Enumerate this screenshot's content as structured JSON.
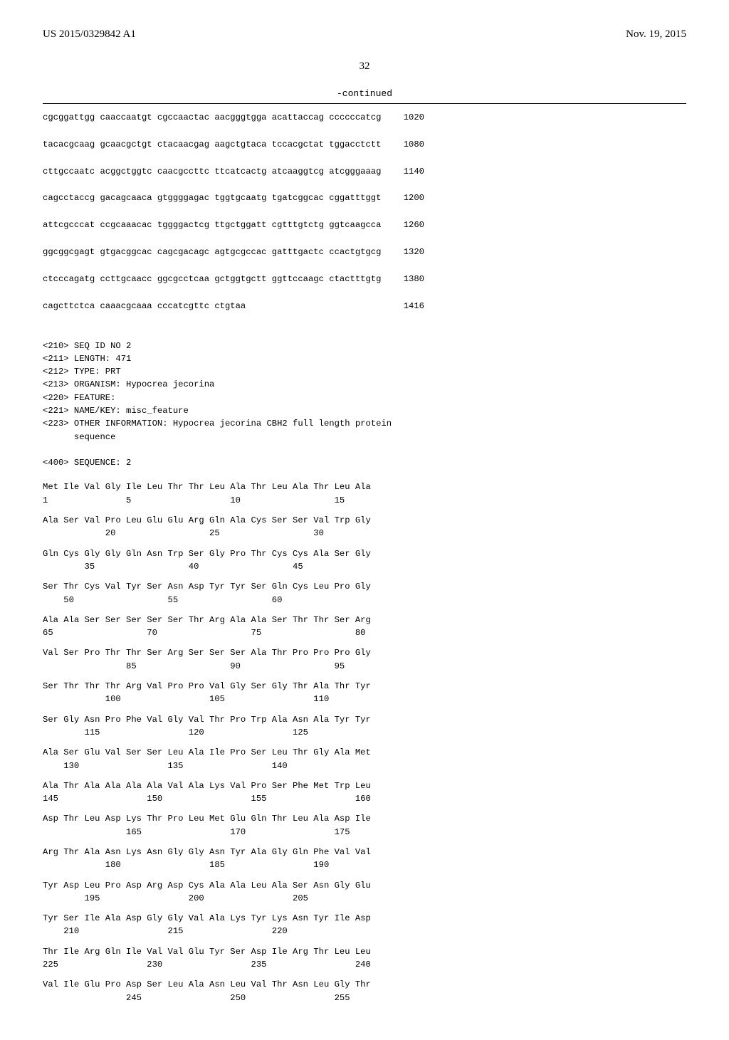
{
  "header": {
    "left": "US 2015/0329842 A1",
    "right": "Nov. 19, 2015"
  },
  "page_number": "32",
  "continued_label": "-continued",
  "nucleotide": {
    "lines": [
      {
        "seq": "cgcggattgg caaccaatgt cgccaactac aacgggtgga acattaccag ccccccatcg",
        "num": "1020"
      },
      {
        "seq": "tacacgcaag gcaacgctgt ctacaacgag aagctgtaca tccacgctat tggacctctt",
        "num": "1080"
      },
      {
        "seq": "cttgccaatc acggctggtc caacgccttc ttcatcactg atcaaggtcg atcgggaaag",
        "num": "1140"
      },
      {
        "seq": "cagcctaccg gacagcaaca gtggggagac tggtgcaatg tgatcggcac cggatttggt",
        "num": "1200"
      },
      {
        "seq": "attcgcccat ccgcaaacac tggggactcg ttgctggatt cgtttgtctg ggtcaagcca",
        "num": "1260"
      },
      {
        "seq": "ggcggcgagt gtgacggcac cagcgacagc agtgcgccac gatttgactc ccactgtgcg",
        "num": "1320"
      },
      {
        "seq": "ctcccagatg ccttgcaacc ggcgcctcaa gctggtgctt ggttccaagc ctactttgtg",
        "num": "1380"
      },
      {
        "seq": "cagcttctca caaacgcaaa cccatcgttc ctgtaa",
        "num": "1416"
      }
    ]
  },
  "metadata": [
    "<210> SEQ ID NO 2",
    "<211> LENGTH: 471",
    "<212> TYPE: PRT",
    "<213> ORGANISM: Hypocrea jecorina",
    "<220> FEATURE:",
    "<221> NAME/KEY: misc_feature",
    "<223> OTHER INFORMATION: Hypocrea jecorina CBH2 full length protein",
    "      sequence",
    "",
    "<400> SEQUENCE: 2"
  ],
  "amino": [
    {
      "aa": "Met Ile Val Gly Ile Leu Thr Thr Leu Ala Thr Leu Ala Thr Leu Ala",
      "nm": "1               5                   10                  15"
    },
    {
      "aa": "Ala Ser Val Pro Leu Glu Glu Arg Gln Ala Cys Ser Ser Val Trp Gly",
      "nm": "            20                  25                  30"
    },
    {
      "aa": "Gln Cys Gly Gly Gln Asn Trp Ser Gly Pro Thr Cys Cys Ala Ser Gly",
      "nm": "        35                  40                  45"
    },
    {
      "aa": "Ser Thr Cys Val Tyr Ser Asn Asp Tyr Tyr Ser Gln Cys Leu Pro Gly",
      "nm": "    50                  55                  60"
    },
    {
      "aa": "Ala Ala Ser Ser Ser Ser Ser Thr Arg Ala Ala Ser Thr Thr Ser Arg",
      "nm": "65                  70                  75                  80"
    },
    {
      "aa": "Val Ser Pro Thr Thr Ser Arg Ser Ser Ser Ala Thr Pro Pro Pro Gly",
      "nm": "                85                  90                  95"
    },
    {
      "aa": "Ser Thr Thr Thr Arg Val Pro Pro Val Gly Ser Gly Thr Ala Thr Tyr",
      "nm": "            100                 105                 110"
    },
    {
      "aa": "Ser Gly Asn Pro Phe Val Gly Val Thr Pro Trp Ala Asn Ala Tyr Tyr",
      "nm": "        115                 120                 125"
    },
    {
      "aa": "Ala Ser Glu Val Ser Ser Leu Ala Ile Pro Ser Leu Thr Gly Ala Met",
      "nm": "    130                 135                 140"
    },
    {
      "aa": "Ala Thr Ala Ala Ala Ala Val Ala Lys Val Pro Ser Phe Met Trp Leu",
      "nm": "145                 150                 155                 160"
    },
    {
      "aa": "Asp Thr Leu Asp Lys Thr Pro Leu Met Glu Gln Thr Leu Ala Asp Ile",
      "nm": "                165                 170                 175"
    },
    {
      "aa": "Arg Thr Ala Asn Lys Asn Gly Gly Asn Tyr Ala Gly Gln Phe Val Val",
      "nm": "            180                 185                 190"
    },
    {
      "aa": "Tyr Asp Leu Pro Asp Arg Asp Cys Ala Ala Leu Ala Ser Asn Gly Glu",
      "nm": "        195                 200                 205"
    },
    {
      "aa": "Tyr Ser Ile Ala Asp Gly Gly Val Ala Lys Tyr Lys Asn Tyr Ile Asp",
      "nm": "    210                 215                 220"
    },
    {
      "aa": "Thr Ile Arg Gln Ile Val Val Glu Tyr Ser Asp Ile Arg Thr Leu Leu",
      "nm": "225                 230                 235                 240"
    },
    {
      "aa": "Val Ile Glu Pro Asp Ser Leu Ala Asn Leu Val Thr Asn Leu Gly Thr",
      "nm": "                245                 250                 255"
    }
  ]
}
